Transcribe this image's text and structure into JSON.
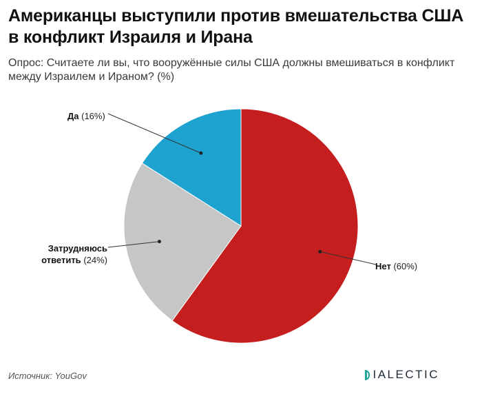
{
  "title": "Американцы выступили против вмешательства США в конфликт Израиля и Ирана",
  "subtitle": "Опрос: Считаете ли вы, что вооружённые силы США должны вмешиваться в конфликт между Израилем и Ираном? (%)",
  "source": "Источник: YouGov",
  "logo": {
    "text": "IALECTIC",
    "icon": "dialectic-d-logo-icon",
    "accent": "#21a59a"
  },
  "chart_data": {
    "type": "pie",
    "unit": "%",
    "slices": [
      {
        "name": "Нет",
        "value": 60,
        "label": "Нет",
        "pct_text": "(60%)",
        "color": "#c41e1e"
      },
      {
        "name": "Затрудняюсь ответить",
        "value": 24,
        "label": "Затрудняюсь ответить",
        "pct_text": "(24%)",
        "color": "#c6c6c6"
      },
      {
        "name": "Да",
        "value": 16,
        "label": "Да",
        "pct_text": "(16%)",
        "color": "#1ea2d0"
      }
    ]
  }
}
